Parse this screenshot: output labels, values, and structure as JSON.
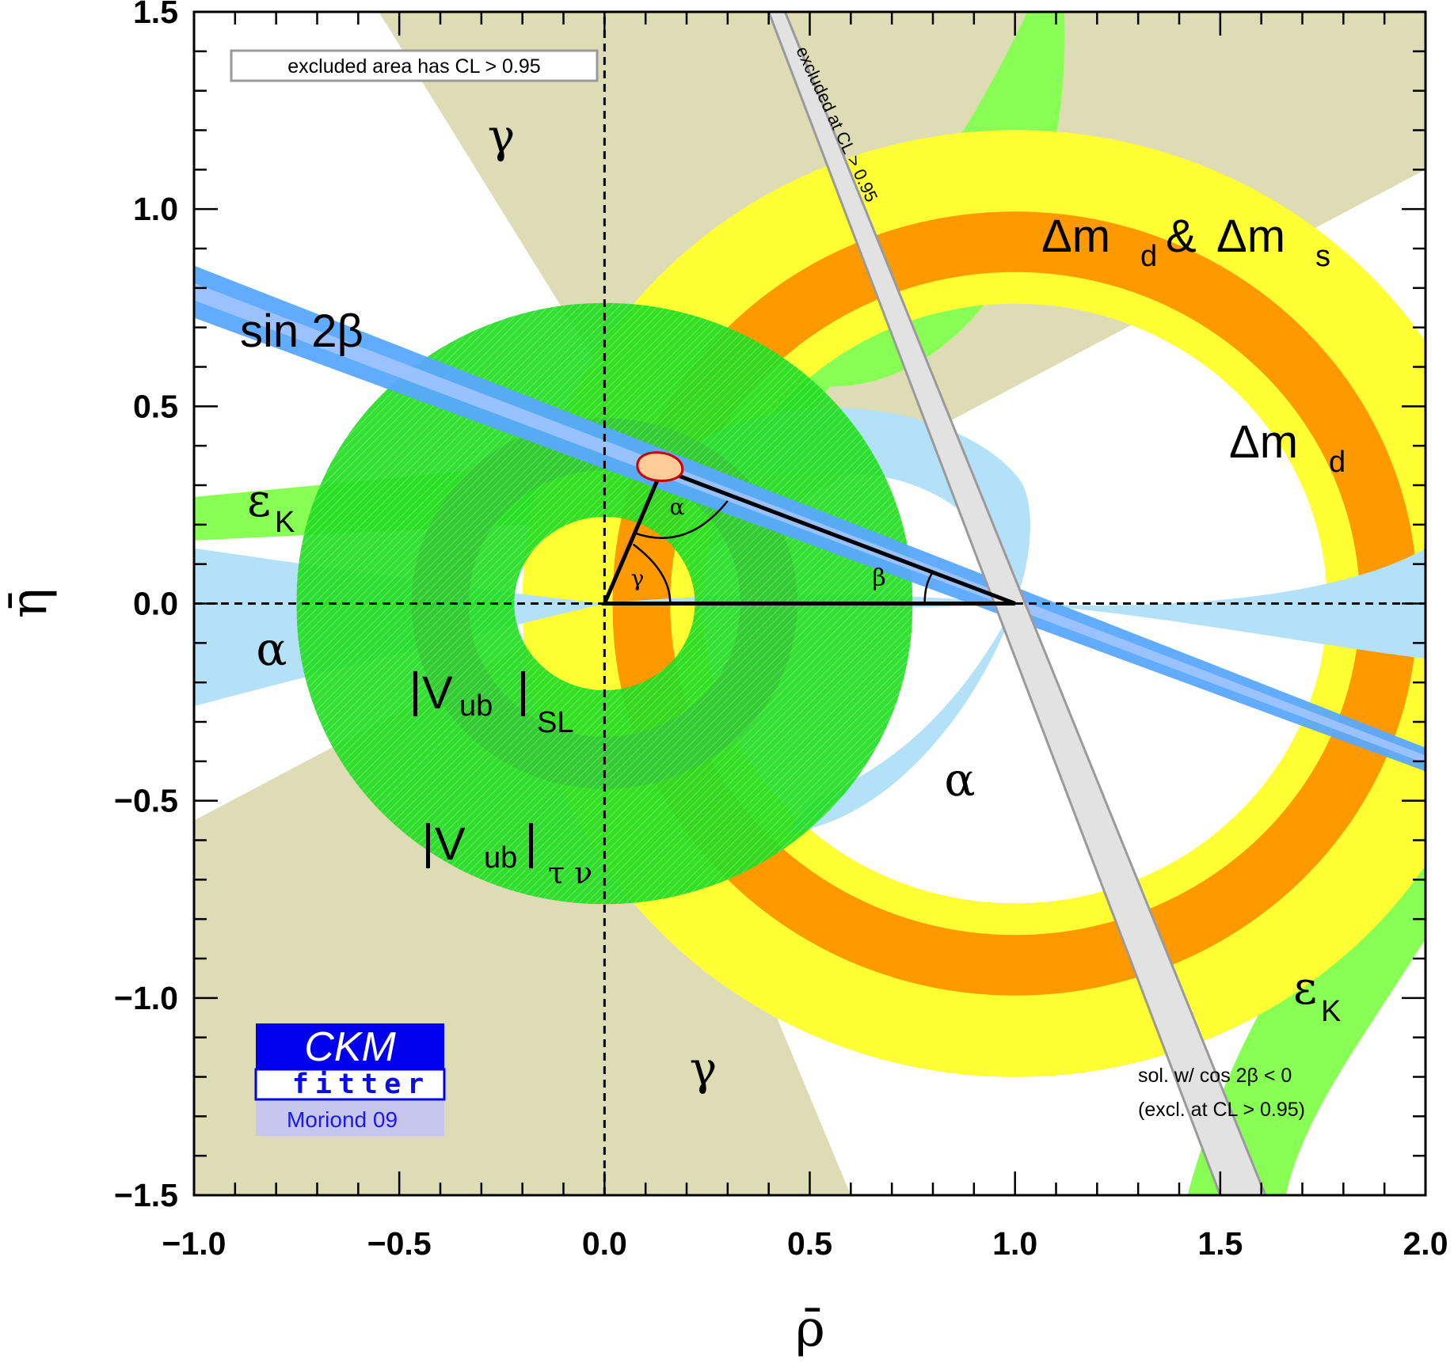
{
  "chart_data": {
    "type": "scatter",
    "title": "",
    "xlabel": "ρ̄",
    "ylabel": "η̄",
    "xlim": [
      -1.0,
      2.0
    ],
    "ylim": [
      -1.5,
      1.5
    ],
    "x_ticks": [
      "−1.0",
      "−0.5",
      "0.0",
      "0.5",
      "1.0",
      "1.5",
      "2.0"
    ],
    "y_ticks": [
      "−1.5",
      "−1.0",
      "−0.5",
      "0.0",
      "0.5",
      "1.0",
      "1.5"
    ],
    "grid": false,
    "apex": {
      "rho": 0.14,
      "eta": 0.34
    },
    "unitarity_triangle": {
      "vertices": [
        [
          0,
          0
        ],
        [
          1,
          0
        ],
        [
          0.14,
          0.34
        ]
      ],
      "angle_labels": [
        "α",
        "β",
        "γ"
      ]
    },
    "constraints": [
      {
        "name": "Δm_d & Δm_s",
        "shape": "ring",
        "center": [
          1,
          0
        ],
        "r_inner": 0.96,
        "r_outer": 1.0,
        "band_inner": 0.82,
        "band_outer": 1.13,
        "colors": [
          "#ff9900",
          "#ffff33"
        ]
      },
      {
        "name": "Δm_d",
        "shape": "ring",
        "center": [
          1,
          0
        ],
        "r_inner": 0.76,
        "r_outer": 1.2,
        "color": "#ffff33"
      },
      {
        "name": "|V_ub|_SL",
        "shape": "ring",
        "center": [
          0,
          0
        ],
        "r_inner": 0.33,
        "r_outer": 0.47,
        "color": "#33cc33"
      },
      {
        "name": "|V_ub|_τν",
        "shape": "ring",
        "center": [
          0,
          0
        ],
        "r_inner": 0.22,
        "r_outer": 0.75,
        "color": "#22dd22"
      },
      {
        "name": "sin 2β",
        "shape": "band",
        "slope": -0.386,
        "through": [
          1,
          0
        ],
        "color": "#5aa8ff"
      },
      {
        "name": "γ",
        "shape": "wedge",
        "color": "#dedcb4"
      },
      {
        "name": "α",
        "shape": "curve",
        "color": "#b3e2f8"
      },
      {
        "name": "ε_K",
        "shape": "hyperbola",
        "color": "#88ff55"
      },
      {
        "name": "sol. w/ cos 2β < 0",
        "shape": "band",
        "color": "#e2e2e2"
      }
    ],
    "labels": {
      "delta_md_ms": "Δm",
      "delta_md": "Δm",
      "sub_d": "d",
      "sub_s": "s",
      "amp": "&",
      "sin2beta": "sin 2β",
      "epsK": "ε",
      "sub_K": "K",
      "alpha": "α",
      "beta": "β",
      "gamma": "γ",
      "vub_V": "V",
      "vub_sub": "ub",
      "vub_SL": "SL",
      "vub_taunu": "τ ν",
      "excluded_box": "excluded area has CL > 0.95",
      "excluded_rotated": "excluded at CL > 0.95",
      "sol_line1": "sol. w/ cos 2β < 0",
      "sol_line2": "(excl. at CL > 0.95)"
    },
    "logo": {
      "top": "CKM",
      "middle": "fitter",
      "bottom": "Moriond 09"
    },
    "colors": {
      "gamma": "#dedcb4",
      "alpha": "#b3e2f8",
      "epsK": "#88ff55",
      "dmd_outer": "#ffff33",
      "dmd_inner": "#ff9900",
      "vub_outer": "#22dd22",
      "vub_inner": "#33cc33",
      "sin2beta": "#5aa8ff",
      "excluded": "#e2e2e2",
      "apex_contour": "#cc0000",
      "logo_blue": "#0000ee",
      "logo_light": "#c6c6ee"
    }
  }
}
